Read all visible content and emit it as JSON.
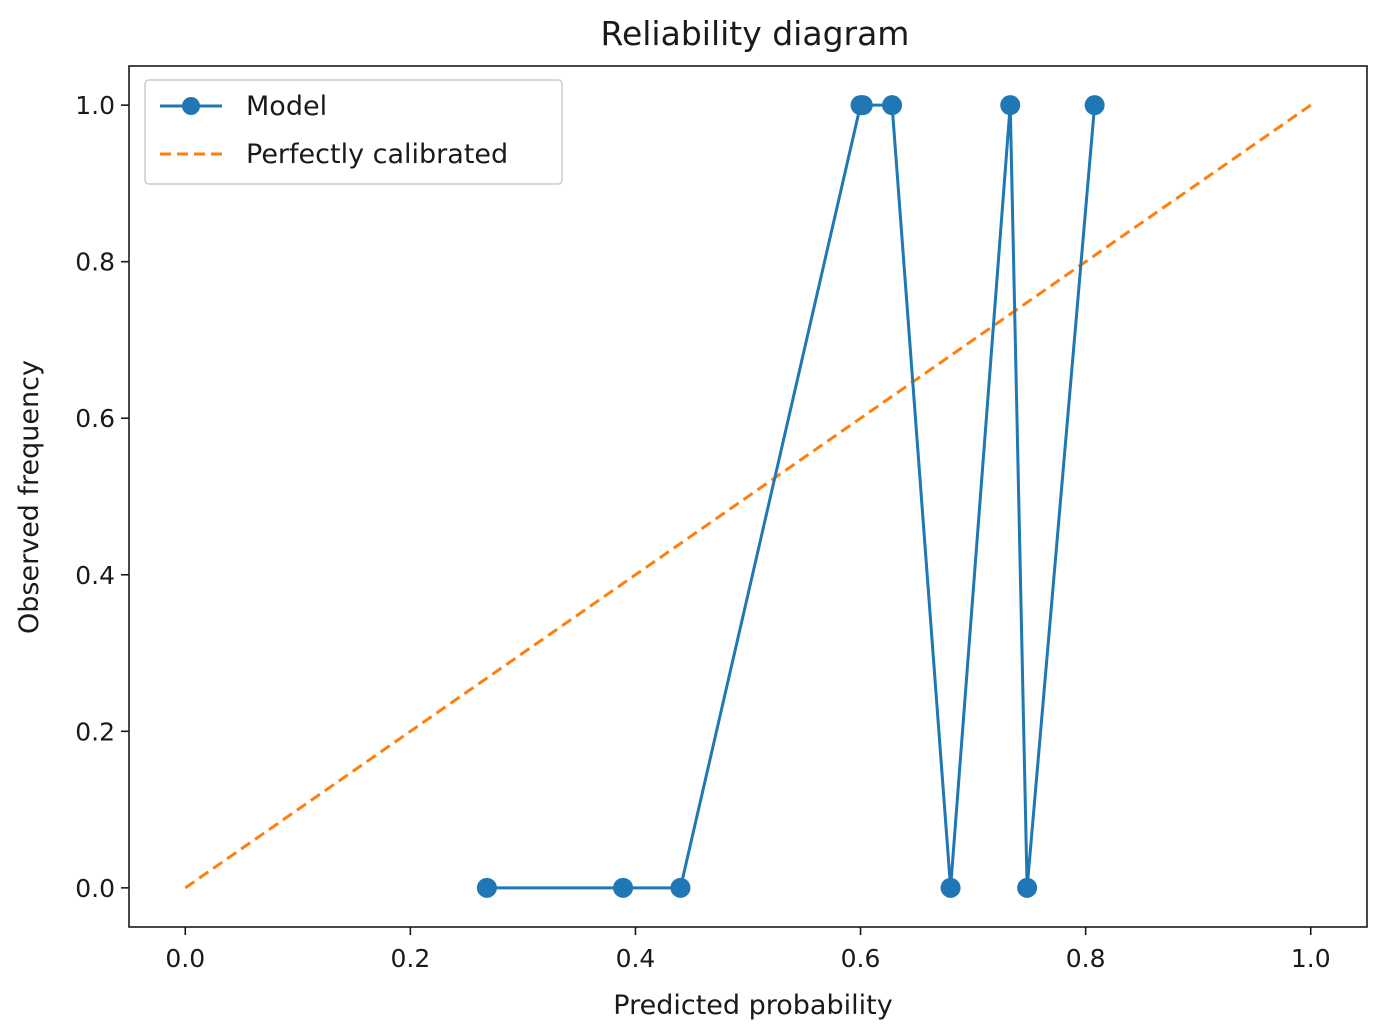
{
  "chart_data": {
    "type": "line",
    "title": "Reliability diagram",
    "xlabel": "Predicted probability",
    "ylabel": "Observed frequency",
    "xlim": [
      -0.05,
      1.05
    ],
    "ylim": [
      -0.05,
      1.05
    ],
    "xticks": [
      0.0,
      0.2,
      0.4,
      0.6,
      0.8,
      1.0
    ],
    "yticks": [
      0.0,
      0.2,
      0.4,
      0.6,
      0.8,
      1.0
    ],
    "xtick_labels": [
      "0.0",
      "0.2",
      "0.4",
      "0.6",
      "0.8",
      "1.0"
    ],
    "ytick_labels": [
      "0.0",
      "0.2",
      "0.4",
      "0.6",
      "0.8",
      "1.0"
    ],
    "grid": false,
    "legend_position": "top-left",
    "series": [
      {
        "name": "Model",
        "style": "solid-line-with-markers",
        "color": "#1f77b4",
        "x": [
          0.268,
          0.389,
          0.44,
          0.6,
          0.602,
          0.628,
          0.68,
          0.733,
          0.748,
          0.808
        ],
        "y": [
          0.0,
          0.0,
          0.0,
          1.0,
          1.0,
          1.0,
          0.0,
          1.0,
          0.0,
          1.0
        ]
      },
      {
        "name": "Perfectly calibrated",
        "style": "dashed-line",
        "color": "#ff7f0e",
        "x": [
          0.0,
          1.0
        ],
        "y": [
          0.0,
          1.0
        ]
      }
    ]
  }
}
